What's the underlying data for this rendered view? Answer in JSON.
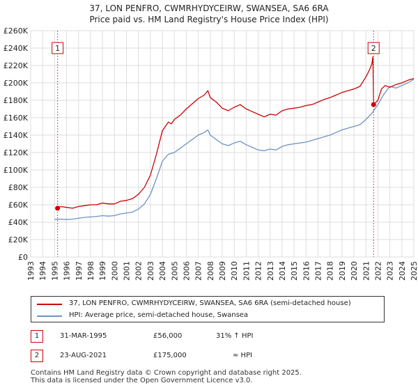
{
  "chart_data": {
    "type": "line",
    "title": "37, LON PENFRO, CWMRHYDYCEIRW, SWANSEA, SA6 6RA",
    "subtitle": "Price paid vs. HM Land Registry's House Price Index (HPI)",
    "xlabel": "",
    "ylabel": "",
    "xlim": [
      1993,
      2025
    ],
    "ylim": [
      0,
      260000
    ],
    "grid": true,
    "y_ticks": [
      0,
      20000,
      40000,
      60000,
      80000,
      100000,
      120000,
      140000,
      160000,
      180000,
      200000,
      220000,
      240000,
      260000
    ],
    "y_tick_labels": [
      "£0",
      "£20K",
      "£40K",
      "£60K",
      "£80K",
      "£100K",
      "£120K",
      "£140K",
      "£160K",
      "£180K",
      "£200K",
      "£220K",
      "£240K",
      "£260K"
    ],
    "x_ticks": [
      1993,
      1994,
      1995,
      1996,
      1997,
      1998,
      1999,
      2000,
      2001,
      2002,
      2003,
      2004,
      2005,
      2006,
      2007,
      2008,
      2009,
      2010,
      2011,
      2012,
      2013,
      2014,
      2015,
      2016,
      2017,
      2018,
      2019,
      2020,
      2021,
      2022,
      2023,
      2024,
      2025
    ],
    "x_tick_labels": [
      "1993",
      "1994",
      "1995",
      "1996",
      "1997",
      "1998",
      "1999",
      "2000",
      "2001",
      "2002",
      "2003",
      "2004",
      "2005",
      "2006",
      "2007",
      "2008",
      "2009",
      "2010",
      "2011",
      "2012",
      "2013",
      "2014",
      "2015",
      "2016",
      "2017",
      "2018",
      "2019",
      "2020",
      "2021",
      "2022",
      "2023",
      "2024",
      "2025"
    ],
    "series": [
      {
        "name": "37, LON PENFRO, CWMRHYDYCEIRW, SWANSEA, SA6 6RA (semi-detached house)",
        "color": "#cc0000",
        "x": [
          1995.25,
          1995.5,
          1996.0,
          1996.5,
          1997.0,
          1997.5,
          1998.0,
          1998.5,
          1999.0,
          1999.5,
          2000.0,
          2000.5,
          2001.0,
          2001.5,
          2002.0,
          2002.5,
          2003.0,
          2003.5,
          2004.0,
          2004.5,
          2004.75,
          2005.0,
          2005.5,
          2006.0,
          2006.5,
          2007.0,
          2007.5,
          2007.8,
          2008.0,
          2008.5,
          2009.0,
          2009.5,
          2010.0,
          2010.5,
          2011.0,
          2011.5,
          2012.0,
          2012.5,
          2013.0,
          2013.5,
          2014.0,
          2014.5,
          2015.0,
          2015.5,
          2016.0,
          2016.5,
          2017.0,
          2017.5,
          2018.0,
          2018.5,
          2019.0,
          2019.5,
          2020.0,
          2020.5,
          2021.0,
          2021.3,
          2021.5,
          2021.58,
          2021.64,
          2022.0,
          2022.3,
          2022.6,
          2023.0,
          2023.5,
          2024.0,
          2024.5,
          2025.0
        ],
        "values": [
          56000,
          58000,
          57000,
          56000,
          58000,
          59000,
          60000,
          60000,
          62000,
          61000,
          61000,
          64000,
          65000,
          67000,
          72000,
          80000,
          94000,
          118000,
          145000,
          155000,
          153000,
          158000,
          163000,
          170000,
          176000,
          182000,
          186000,
          191000,
          183000,
          178000,
          171000,
          168000,
          172000,
          175000,
          170000,
          167000,
          164000,
          161000,
          164000,
          163000,
          168000,
          170000,
          171000,
          172000,
          174000,
          175000,
          178000,
          181000,
          183000,
          186000,
          189000,
          191000,
          193000,
          196000,
          207000,
          215000,
          222000,
          230000,
          175000,
          180000,
          193000,
          197000,
          195000,
          198000,
          200000,
          203000,
          205000
        ]
      },
      {
        "name": "HPI: Average price, semi-detached house, Swansea",
        "color": "#6b93c4",
        "x": [
          1995.0,
          1995.5,
          1996.0,
          1996.5,
          1997.0,
          1997.5,
          1998.0,
          1998.5,
          1999.0,
          1999.5,
          2000.0,
          2000.5,
          2001.0,
          2001.5,
          2002.0,
          2002.5,
          2003.0,
          2003.5,
          2004.0,
          2004.5,
          2005.0,
          2005.5,
          2006.0,
          2006.5,
          2007.0,
          2007.5,
          2007.8,
          2008.0,
          2008.5,
          2009.0,
          2009.5,
          2010.0,
          2010.5,
          2011.0,
          2011.5,
          2012.0,
          2012.5,
          2013.0,
          2013.5,
          2014.0,
          2014.5,
          2015.0,
          2015.5,
          2016.0,
          2016.5,
          2017.0,
          2017.5,
          2018.0,
          2018.5,
          2019.0,
          2019.5,
          2020.0,
          2020.5,
          2021.0,
          2021.5,
          2022.0,
          2022.5,
          2023.0,
          2023.5,
          2024.0,
          2024.5,
          2025.0
        ],
        "values": [
          43000,
          43500,
          43000,
          43500,
          44500,
          45500,
          46000,
          46500,
          47500,
          47000,
          47500,
          49500,
          50500,
          51500,
          55000,
          61000,
          72000,
          90000,
          110000,
          118000,
          120000,
          125000,
          130000,
          135000,
          140000,
          143000,
          146000,
          140000,
          135000,
          130000,
          128000,
          131000,
          133000,
          129000,
          126000,
          123000,
          122000,
          124000,
          123000,
          127000,
          129000,
          130000,
          131000,
          132000,
          134000,
          136000,
          138000,
          140000,
          143000,
          146000,
          148000,
          150000,
          152000,
          158000,
          165000,
          175000,
          187000,
          196000,
          194000,
          197000,
          200000,
          204000
        ]
      }
    ],
    "annotations": [
      {
        "label": "1",
        "x": 1995.25,
        "value": 56000
      },
      {
        "label": "2",
        "x": 2021.64,
        "value": 175000
      }
    ]
  },
  "legend": {
    "property_label": "37, LON PENFRO, CWMRHYDYCEIRW, SWANSEA, SA6 6RA (semi-detached house)",
    "hpi_label": "HPI: Average price, semi-detached house, Swansea"
  },
  "transactions": [
    {
      "num": "1",
      "date": "31-MAR-1995",
      "price": "£56,000",
      "hpi": "31% ↑ HPI"
    },
    {
      "num": "2",
      "date": "23-AUG-2021",
      "price": "£175,000",
      "hpi": "≈ HPI"
    }
  ],
  "footer": {
    "line1": "Contains HM Land Registry data © Crown copyright and database right 2025.",
    "line2": "This data is licensed under the Open Government Licence v3.0."
  },
  "colors": {
    "property": "#cc0000",
    "hpi": "#6b93c4",
    "grid": "#dddddd",
    "vline": "#dd4444"
  }
}
